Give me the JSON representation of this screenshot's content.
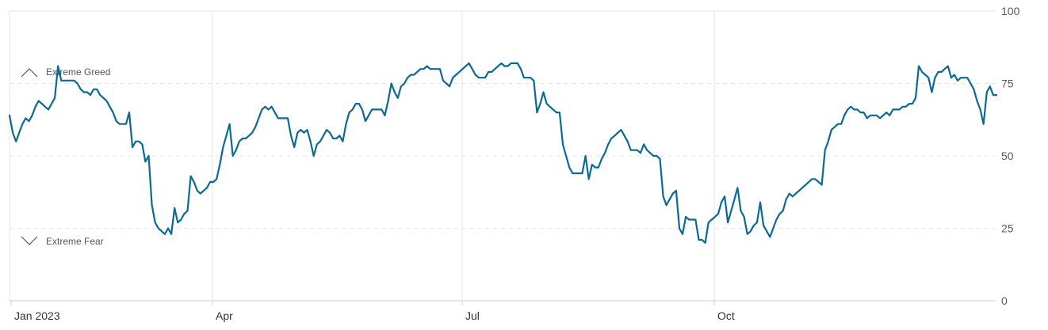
{
  "chart_data": {
    "type": "line",
    "title": "",
    "xlabel": "",
    "ylabel": "",
    "ylim": [
      0,
      100
    ],
    "y_ticks": [
      "0",
      "25",
      "50",
      "75",
      "100"
    ],
    "x_ticks": [
      "Jan 2023",
      "Apr",
      "Jul",
      "Oct"
    ],
    "grid": "horizontal dashed at 25/50/75; vertical lines at month ticks",
    "annotations": {
      "greed": "Extreme Greed",
      "fear": "Extreme Fear"
    },
    "colors": {
      "line": "#0b6a93",
      "grid": "#e6e6e6",
      "axis": "#cfcfcf"
    },
    "series": [
      {
        "values": [
          64,
          58,
          55,
          58,
          61,
          63,
          62,
          64,
          67,
          69,
          68,
          67,
          66,
          68,
          70,
          81,
          76,
          76,
          76,
          76,
          76,
          75,
          73,
          72,
          72,
          71,
          73,
          73,
          71,
          70,
          69,
          67,
          65,
          62,
          61,
          61,
          61,
          65,
          53,
          55,
          55,
          54,
          48,
          50,
          33,
          27,
          25,
          24,
          23,
          25,
          23,
          32,
          27,
          28,
          30,
          31,
          43,
          41,
          38,
          37,
          38,
          39,
          41,
          41,
          42,
          47,
          53,
          57,
          61,
          50,
          52,
          55,
          56,
          56,
          57,
          58,
          60,
          63,
          66,
          67,
          66,
          67,
          65,
          63,
          63,
          63,
          63,
          57,
          53,
          58,
          59,
          58,
          59,
          55,
          50,
          54,
          55,
          57,
          59,
          58,
          56,
          56,
          57,
          55,
          61,
          65,
          66,
          68,
          68,
          66,
          62,
          64,
          66,
          66,
          66,
          66,
          64,
          69,
          75,
          72,
          70,
          74,
          75,
          77,
          78,
          78,
          79,
          80,
          80,
          81,
          80,
          80,
          80,
          80,
          76,
          75,
          74,
          77,
          78,
          79,
          80,
          81,
          82,
          80,
          78,
          77,
          77,
          77,
          79,
          79,
          80,
          81,
          82,
          81,
          81,
          82,
          82,
          82,
          80,
          77,
          77,
          77,
          76,
          65,
          68,
          72,
          68,
          67,
          66,
          65,
          65,
          54,
          50,
          46,
          44,
          44,
          44,
          44,
          50,
          42,
          47,
          46,
          46,
          49,
          51,
          54,
          56,
          57,
          58,
          59,
          57,
          55,
          52,
          52,
          52,
          51,
          54,
          52,
          51,
          50,
          50,
          49,
          36,
          33,
          35,
          37,
          38,
          25,
          23,
          29,
          28,
          28,
          28,
          21,
          21,
          20,
          27,
          28,
          29,
          30,
          34,
          36,
          27,
          31,
          35,
          39,
          31,
          29,
          23,
          24,
          26,
          27,
          34,
          26,
          24,
          22,
          25,
          28,
          30,
          31,
          35,
          37,
          36,
          37,
          38,
          39,
          40,
          41,
          42,
          42,
          41,
          40,
          52,
          55,
          59,
          60,
          61,
          61,
          64,
          66,
          67,
          66,
          66,
          65,
          65,
          63,
          64,
          64,
          64,
          63,
          64,
          65,
          64,
          66,
          66,
          66,
          67,
          67,
          68,
          68,
          70,
          81,
          79,
          78,
          77,
          72,
          77,
          79,
          79,
          80,
          81,
          77,
          78,
          76,
          77,
          77,
          77,
          75,
          73,
          69,
          66,
          61,
          72,
          74,
          71,
          71
        ]
      }
    ]
  }
}
